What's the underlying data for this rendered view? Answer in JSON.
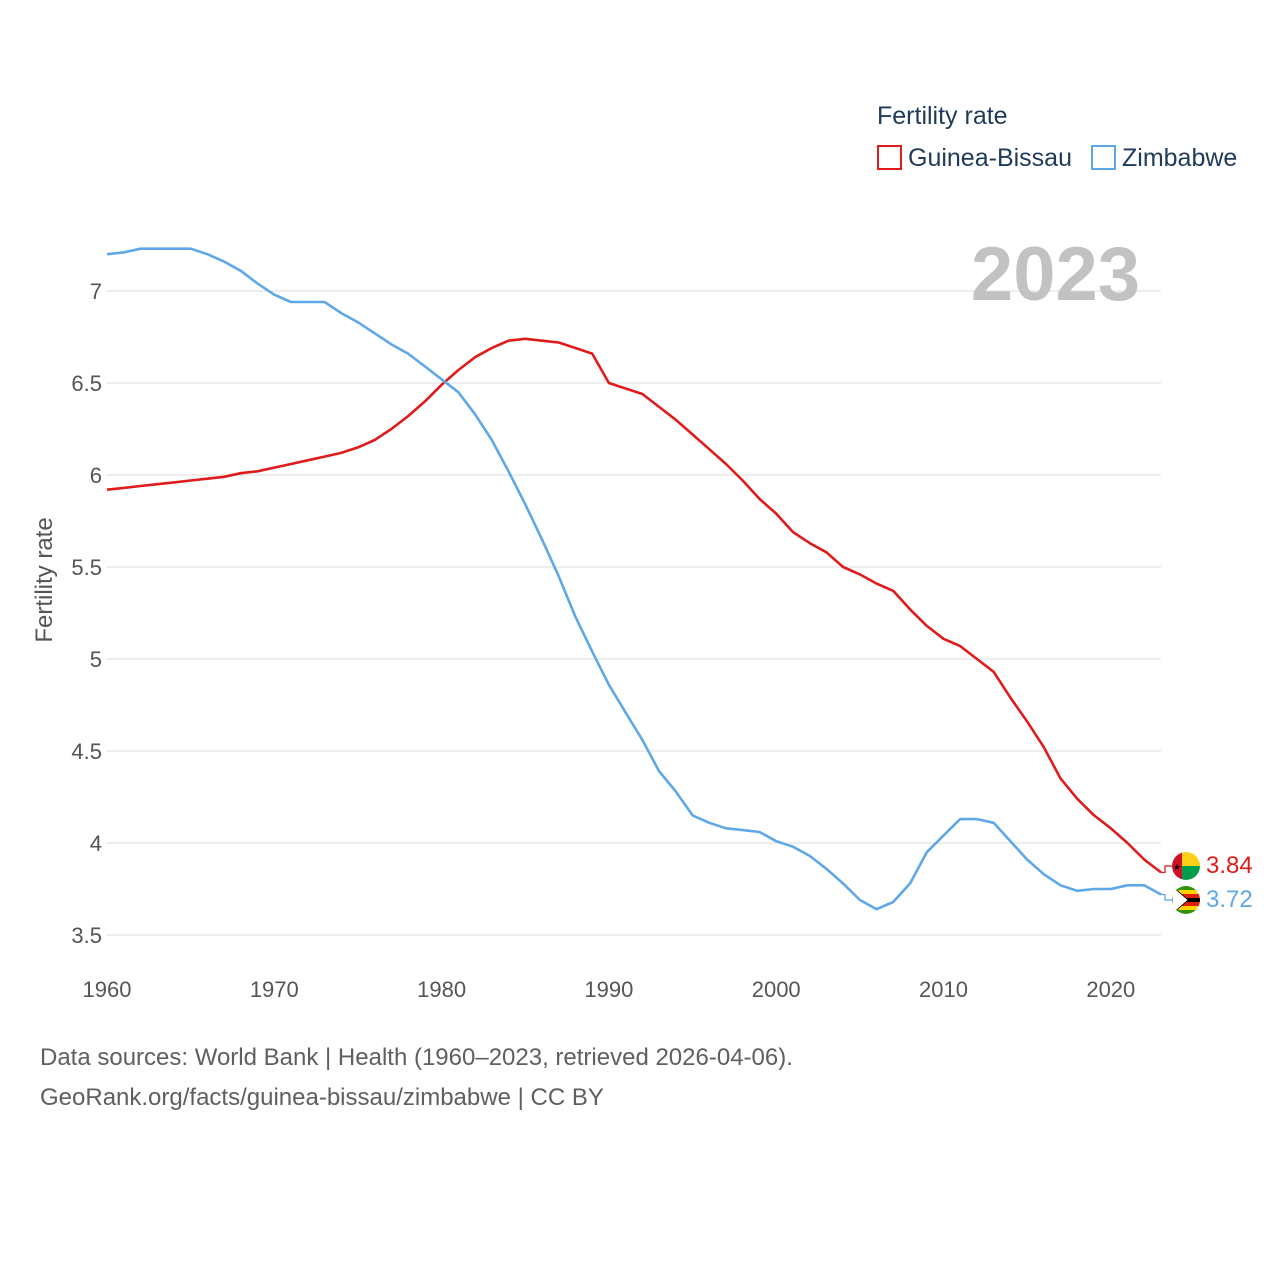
{
  "chart_data": {
    "type": "line",
    "legend_title": "Fertility rate",
    "ylabel": "Fertility rate",
    "year_label": "2023",
    "xlim": [
      1960,
      2023
    ],
    "ylim": [
      3.5,
      7.2
    ],
    "x_ticks": [
      "1960",
      "1970",
      "1980",
      "1990",
      "2000",
      "2010",
      "2020"
    ],
    "y_ticks": [
      "3.5",
      "4",
      "4.5",
      "5",
      "5.5",
      "6",
      "6.5",
      "7"
    ],
    "x": [
      1960,
      1961,
      1962,
      1963,
      1964,
      1965,
      1966,
      1967,
      1968,
      1969,
      1970,
      1971,
      1972,
      1973,
      1974,
      1975,
      1976,
      1977,
      1978,
      1979,
      1980,
      1981,
      1982,
      1983,
      1984,
      1985,
      1986,
      1987,
      1988,
      1989,
      1990,
      1991,
      1992,
      1993,
      1994,
      1995,
      1996,
      1997,
      1998,
      1999,
      2000,
      2001,
      2002,
      2003,
      2004,
      2005,
      2006,
      2007,
      2008,
      2009,
      2010,
      2011,
      2012,
      2013,
      2014,
      2015,
      2016,
      2017,
      2018,
      2019,
      2020,
      2021,
      2022,
      2023
    ],
    "series": [
      {
        "name": "Guinea-Bissau",
        "color": "#e01b1b",
        "end_label": "3.84",
        "values": [
          5.92,
          5.93,
          5.94,
          5.95,
          5.96,
          5.97,
          5.98,
          5.99,
          6.01,
          6.02,
          6.04,
          6.06,
          6.08,
          6.1,
          6.12,
          6.15,
          6.19,
          6.25,
          6.32,
          6.4,
          6.49,
          6.57,
          6.64,
          6.69,
          6.73,
          6.74,
          6.73,
          6.72,
          6.69,
          6.66,
          6.5,
          6.47,
          6.44,
          6.37,
          6.3,
          6.22,
          6.14,
          6.06,
          5.97,
          5.87,
          5.79,
          5.69,
          5.63,
          5.58,
          5.5,
          5.46,
          5.41,
          5.37,
          5.27,
          5.18,
          5.11,
          5.07,
          5.0,
          4.93,
          4.79,
          4.66,
          4.52,
          4.35,
          4.24,
          4.15,
          4.08,
          4.0,
          3.91,
          3.84
        ]
      },
      {
        "name": "Zimbabwe",
        "color": "#5fa8e8",
        "end_label": "3.72",
        "values": [
          7.2,
          7.21,
          7.23,
          7.23,
          7.23,
          7.23,
          7.2,
          7.16,
          7.11,
          7.04,
          6.98,
          6.94,
          6.94,
          6.94,
          6.88,
          6.83,
          6.77,
          6.71,
          6.66,
          6.59,
          6.52,
          6.45,
          6.33,
          6.19,
          6.02,
          5.84,
          5.65,
          5.45,
          5.23,
          5.04,
          4.86,
          4.71,
          4.56,
          4.39,
          4.28,
          4.15,
          4.11,
          4.08,
          4.07,
          4.06,
          4.01,
          3.98,
          3.93,
          3.86,
          3.78,
          3.69,
          3.64,
          3.68,
          3.78,
          3.95,
          4.04,
          4.13,
          4.13,
          4.11,
          4.01,
          3.91,
          3.83,
          3.77,
          3.74,
          3.75,
          3.75,
          3.77,
          3.77,
          3.72
        ]
      }
    ]
  },
  "footer": {
    "line1": "Data sources: World Bank | Health (1960–2023, retrieved 2026-04-06).",
    "line2": "GeoRank.org/facts/guinea-bissau/zimbabwe | CC BY"
  }
}
